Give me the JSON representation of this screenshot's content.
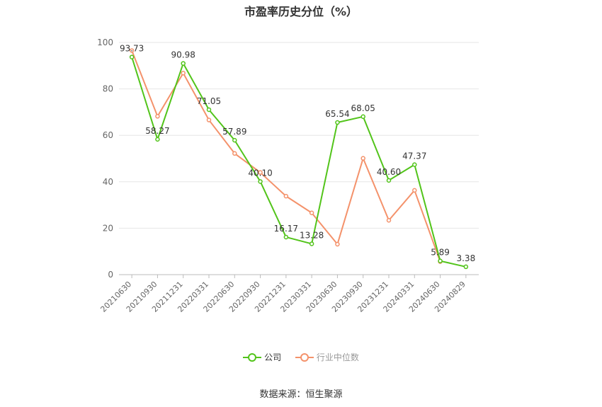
{
  "title": "市盈率历史分位（%）",
  "source": "数据来源：恒生聚源",
  "colors": {
    "company": "#52c41a",
    "industry": "#f4926b",
    "grid": "#e6e6e6",
    "axis": "#999999"
  },
  "chart_data": {
    "type": "line",
    "title": "市盈率历史分位（%）",
    "x": [
      "20210630",
      "20210930",
      "20211231",
      "20220331",
      "20220630",
      "20220930",
      "20221231",
      "20230331",
      "20230630",
      "20230930",
      "20231231",
      "20240331",
      "20240630",
      "20240829"
    ],
    "ylim": [
      0,
      100
    ],
    "yticks": [
      0,
      20,
      40,
      60,
      80,
      100
    ],
    "grid": true,
    "legend": "bottom",
    "series": [
      {
        "name": "公司",
        "color": "#52c41a",
        "values": [
          93.73,
          58.27,
          90.98,
          71.05,
          57.89,
          40.1,
          16.17,
          13.28,
          65.54,
          68.05,
          40.6,
          47.37,
          5.89,
          3.38
        ],
        "labels": [
          "93.73",
          "58.27",
          "90.98",
          "71.05",
          "57.89",
          "40.10",
          "16.17",
          "13.28",
          "65.54",
          "68.05",
          "40.60",
          "47.37",
          "5.89",
          "3.38"
        ]
      },
      {
        "name": "行业中位数",
        "color": "#f4926b",
        "values": [
          96.5,
          68.2,
          86.8,
          66.6,
          52.2,
          44.0,
          33.8,
          26.6,
          13.1,
          50.1,
          23.4,
          36.3,
          5.6,
          null
        ]
      }
    ]
  }
}
